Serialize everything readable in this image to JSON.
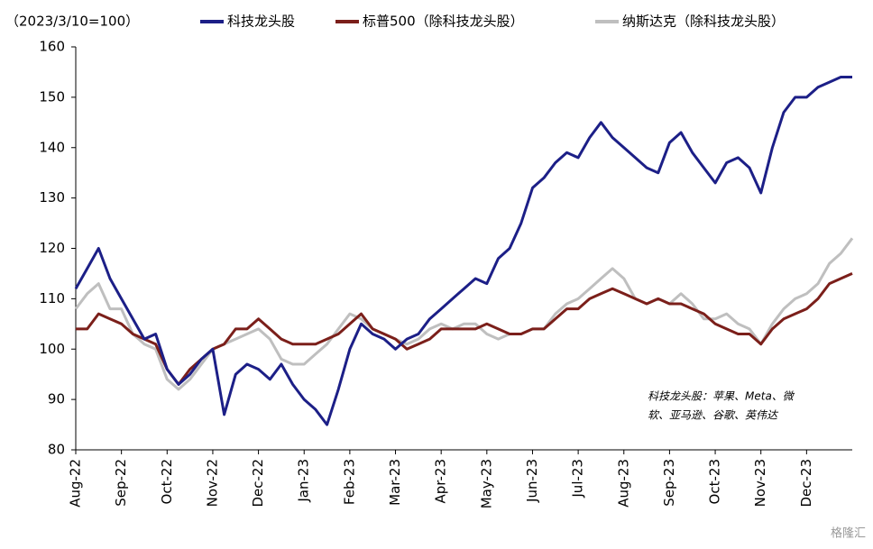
{
  "chart_data": {
    "type": "line",
    "unit_label": "（2023/3/10=100）",
    "categories": [
      "Aug-22",
      null,
      null,
      null,
      "Sep-22",
      null,
      null,
      null,
      "Oct-22",
      null,
      null,
      null,
      "Nov-22",
      null,
      null,
      null,
      "Dec-22",
      null,
      null,
      null,
      "Jan-23",
      null,
      null,
      null,
      "Feb-23",
      null,
      null,
      null,
      "Mar-23",
      null,
      null,
      null,
      "Apr-23",
      null,
      null,
      null,
      "May-23",
      null,
      null,
      null,
      "Jun-23",
      null,
      null,
      null,
      "Jul-23",
      null,
      null,
      null,
      "Aug-23",
      null,
      null,
      null,
      "Sep-23",
      null,
      null,
      null,
      "Oct-23",
      null,
      null,
      null,
      "Nov-23",
      null,
      null,
      null,
      "Dec-23",
      null,
      null,
      null,
      null
    ],
    "series": [
      {
        "name": "科技龙头股",
        "color": "#1c1f87",
        "values": [
          112,
          116,
          120,
          114,
          110,
          106,
          102,
          103,
          96,
          93,
          95,
          98,
          100,
          87,
          95,
          97,
          96,
          94,
          97,
          93,
          90,
          88,
          85,
          92,
          100,
          105,
          103,
          102,
          100,
          102,
          103,
          106,
          108,
          110,
          112,
          114,
          113,
          118,
          120,
          125,
          132,
          134,
          137,
          139,
          138,
          142,
          145,
          142,
          140,
          138,
          136,
          135,
          141,
          143,
          139,
          136,
          133,
          137,
          138,
          136,
          131,
          140,
          147,
          150,
          150,
          152,
          153,
          154,
          154
        ]
      },
      {
        "name": "标普500（除科技龙头股）",
        "color": "#7b1f1a",
        "values": [
          104,
          104,
          107,
          106,
          105,
          103,
          102,
          101,
          96,
          93,
          96,
          98,
          100,
          101,
          104,
          104,
          106,
          104,
          102,
          101,
          101,
          101,
          102,
          103,
          105,
          107,
          104,
          103,
          102,
          100,
          101,
          102,
          104,
          104,
          104,
          104,
          105,
          104,
          103,
          103,
          104,
          104,
          106,
          108,
          108,
          110,
          111,
          112,
          111,
          110,
          109,
          110,
          109,
          109,
          108,
          107,
          105,
          104,
          103,
          103,
          101,
          104,
          106,
          107,
          108,
          110,
          113,
          114,
          115
        ]
      },
      {
        "name": "纳斯达克（除科技龙头股）",
        "color": "#bfbfbf",
        "values": [
          108,
          111,
          113,
          108,
          108,
          103,
          101,
          100,
          94,
          92,
          94,
          97,
          100,
          101,
          102,
          103,
          104,
          102,
          98,
          97,
          97,
          99,
          101,
          104,
          107,
          106,
          104,
          103,
          102,
          101,
          102,
          104,
          105,
          104,
          105,
          105,
          103,
          102,
          103,
          103,
          104,
          104,
          107,
          109,
          110,
          112,
          114,
          116,
          114,
          110,
          109,
          110,
          109,
          111,
          109,
          106,
          106,
          107,
          105,
          104,
          101,
          105,
          108,
          110,
          111,
          113,
          117,
          119,
          122
        ]
      }
    ],
    "ylim": [
      80,
      160
    ],
    "yticks": [
      80,
      90,
      100,
      110,
      120,
      130,
      140,
      150,
      160
    ],
    "grid": false,
    "annotation": [
      "科技龙头股：苹果、Meta、微",
      "软、亚马逊、谷歌、英伟达"
    ],
    "watermark": "格隆汇"
  }
}
